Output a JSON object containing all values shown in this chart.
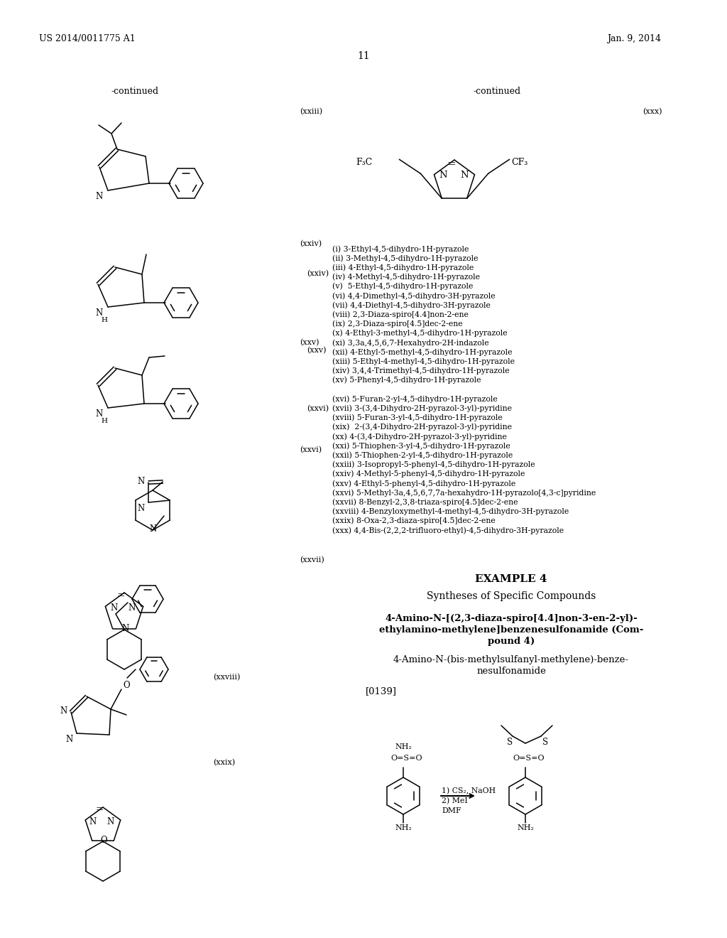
{
  "bg": "#ffffff",
  "header_left": "US 2014/0011775 A1",
  "header_right": "Jan. 9, 2014",
  "page_num": "11",
  "left_continued": "-continued",
  "right_continued": "-continued",
  "label_xxiii": "(xxiii)",
  "label_xxiv": "(xxiv)",
  "label_xxv": "(xxv)",
  "label_xxvi": "(xxvi)",
  "label_xxvii": "(xxvii)",
  "label_xxviii": "(xxviii)",
  "label_xxix": "(xxix)",
  "label_xxx": "(xxx)",
  "right_list": [
    "(i) 3-Ethyl-4,5-dihydro-1H-pyrazole",
    "(ii) 3-Methyl-4,5-dihydro-1H-pyrazole",
    "(iii) 4-Ethyl-4,5-dihydro-1H-pyrazole",
    "(iv) 4-Methyl-4,5-dihydro-1H-pyrazole",
    "(v)  5-Ethyl-4,5-dihydro-1H-pyrazole",
    "(vi) 4,4-Dimethyl-4,5-dihydro-3H-pyrazole",
    "(vii) 4,4-Diethyl-4,5-dihydro-3H-pyrazole",
    "(viii) 2,3-Diaza-spiro[4.4]non-2-ene",
    "(ix) 2,3-Diaza-spiro[4.5]dec-2-ene",
    "(x) 4-Ethyl-3-methyl-4,5-dihydro-1H-pyrazole",
    "(xi) 3,3a,4,5,6,7-Hexahydro-2H-indazole",
    "(xii) 4-Ethyl-5-methyl-4,5-dihydro-1H-pyrazole",
    "(xiii) 5-Ethyl-4-methyl-4,5-dihydro-1H-pyrazole",
    "(xiv) 3,4,4-Trimethyl-4,5-dihydro-1H-pyrazole",
    "(xv) 5-Phenyl-4,5-dihydro-1H-pyrazole",
    "",
    "(xvi) 5-Furan-2-yl-4,5-dihydro-1H-pyrazole",
    "(xvii) 3-(3,4-Dihydro-2H-pyrazol-3-yl)-pyridine",
    "(xviii) 5-Furan-3-yl-4,5-dihydro-1H-pyrazole",
    "(xix)  2-(3,4-Dihydro-2H-pyrazol-3-yl)-pyridine",
    "(xx) 4-(3,4-Dihydro-2H-pyrazol-3-yl)-pyridine",
    "(xxi) 5-Thiophen-3-yl-4,5-dihydro-1H-pyrazole",
    "(xxii) 5-Thiophen-2-yl-4,5-dihydro-1H-pyrazole",
    "(xxiii) 3-Isopropyl-5-phenyl-4,5-dihydro-1H-pyrazole",
    "(xxiv) 4-Methyl-5-phenyl-4,5-dihydro-1H-pyrazole",
    "(xxv) 4-Ethyl-5-phenyl-4,5-dihydro-1H-pyrazole",
    "(xxvi) 5-Methyl-3a,4,5,6,7,7a-hexahydro-1H-pyrazolo[4,3-c]pyridine",
    "(xxvii) 8-Benzyl-2,3,8-triaza-spiro[4.5]dec-2-ene",
    "(xxviii) 4-Benzyloxymethyl-4-methyl-4,5-dihydro-3H-pyrazole",
    "(xxix) 8-Oxa-2,3-diaza-spiro[4.5]dec-2-ene",
    "(xxx) 4,4-Bis-(2,2,2-trifluoro-ethyl)-4,5-dihydro-3H-pyrazole"
  ],
  "example4_title": "EXAMPLE 4",
  "example4_sub": "Syntheses of Specific Compounds",
  "cpd4_l1": "4-Amino-N-[(2,3-diaza-spiro[4.4]non-3-en-2-yl)-",
  "cpd4_l2": "ethylamino-methylene]benzenesulfonamide (Com-",
  "cpd4_l3": "pound 4)",
  "cpd4b_l1": "4-Amino-N-(bis-methylsulfanyl-methylene)-benze-",
  "cpd4b_l2": "nesulfonamide",
  "para": "[0139]",
  "rxn1": "1) CS₂, NaOH",
  "rxn2": "2) MeI",
  "rxn3": "DMF",
  "nh2": "NH₂",
  "f3c_left": "F₃C",
  "cf3_right": "CF₃"
}
